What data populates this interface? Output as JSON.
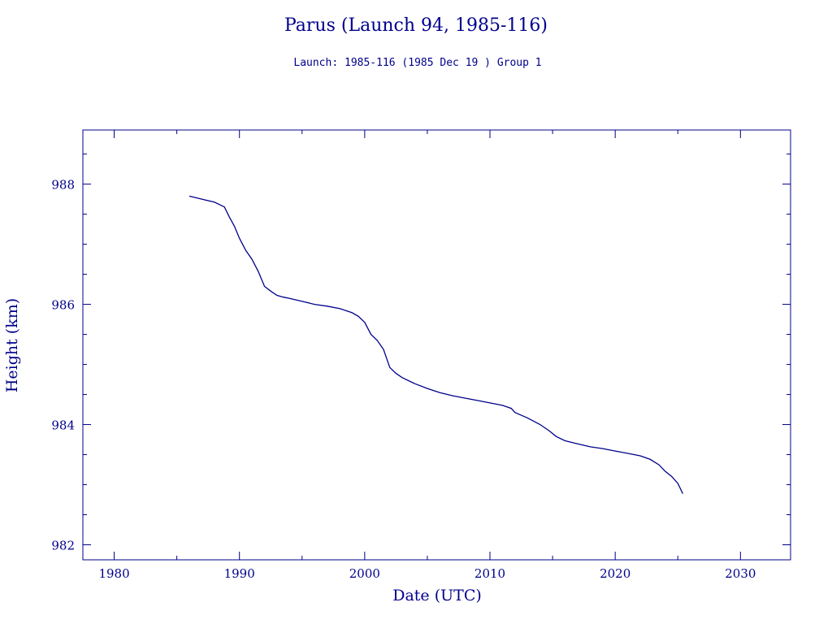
{
  "chart_data": {
    "type": "line",
    "title": "Parus (Launch 94, 1985-116)",
    "subtitle": "Launch: 1985-116  (1985 Dec 19 )  Group 1",
    "xlabel": "Date (UTC)",
    "ylabel": "Height (km)",
    "xlim": [
      1977.5,
      2034
    ],
    "ylim": [
      981.75,
      988.9
    ],
    "x_ticks": [
      1980,
      1990,
      2000,
      2010,
      2020,
      2030
    ],
    "x_tick_labels": [
      "1980",
      "1990",
      "2000",
      "2010",
      "2020",
      "2030"
    ],
    "y_ticks": [
      982,
      984,
      986,
      988
    ],
    "y_tick_labels": [
      "982",
      "984",
      "986",
      "988"
    ],
    "grid": false,
    "color": "#00008b",
    "series": [
      {
        "x": [
          1986.0,
          1987.0,
          1988.0,
          1988.8,
          1989.2,
          1989.6,
          1990.0,
          1990.5,
          1991.0,
          1991.5,
          1992.0,
          1992.5,
          1993.0,
          1993.5,
          1994.0,
          1995.0,
          1996.0,
          1997.0,
          1998.0,
          1999.0,
          1999.5,
          2000.0,
          2000.5,
          2001.0,
          2001.5,
          2002.0,
          2002.5,
          2003.0,
          2004.0,
          2005.0,
          2006.0,
          2007.0,
          2008.0,
          2009.0,
          2010.0,
          2011.0,
          2011.7,
          2012.0,
          2013.0,
          2014.0,
          2014.7,
          2015.3,
          2016.0,
          2017.0,
          2018.0,
          2019.0,
          2020.0,
          2021.0,
          2022.0,
          2022.8,
          2023.5,
          2024.0,
          2024.5,
          2025.0,
          2025.4
        ],
        "y": [
          987.8,
          987.75,
          987.7,
          987.62,
          987.45,
          987.3,
          987.1,
          986.9,
          986.75,
          986.55,
          986.3,
          986.22,
          986.15,
          986.12,
          986.1,
          986.05,
          986.0,
          985.97,
          985.93,
          985.86,
          985.8,
          985.7,
          985.5,
          985.4,
          985.25,
          984.95,
          984.85,
          984.78,
          984.68,
          984.6,
          984.53,
          984.48,
          984.44,
          984.4,
          984.36,
          984.32,
          984.27,
          984.2,
          984.11,
          984.0,
          983.9,
          983.8,
          983.73,
          983.68,
          983.63,
          983.6,
          983.56,
          983.52,
          983.48,
          983.42,
          983.33,
          983.22,
          983.14,
          983.02,
          982.85
        ]
      }
    ]
  }
}
